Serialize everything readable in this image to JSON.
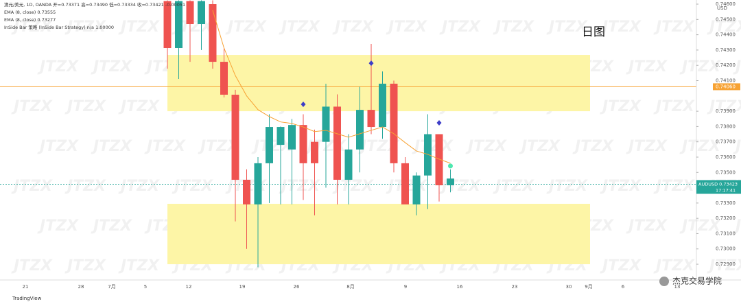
{
  "chart_data": {
    "type": "candlestick",
    "symbol_line": "澳元/美元, 1D, OANDA  开=0.73371 高=0.73490 低=0.73334 收=0.73421 -0.00051",
    "indicator_lines": [
      "EMA (8, close) 0.73555",
      "EMA (8, close) 0.73277",
      "InSide Bar 策略 (InSide Bar Strategy) n/a 1.00000"
    ],
    "annotation": "日图",
    "currency": "USD",
    "watermark": "JTZX",
    "brand": "TradingView",
    "footer": "杰克交易学院",
    "x_labels": [
      "21",
      "28",
      "7月",
      "5",
      "12",
      "19",
      "26",
      "8月",
      "9",
      "16",
      "23",
      "30",
      "9月",
      "6",
      "13"
    ],
    "ylim": [
      0.72797,
      0.74627
    ],
    "yticks": [
      {
        "value": 0.746,
        "label": "0.74600"
      },
      {
        "value": 0.745,
        "label": "0.74500"
      },
      {
        "value": 0.744,
        "label": "0.74400"
      },
      {
        "value": 0.743,
        "label": "0.74300"
      },
      {
        "value": 0.742,
        "label": "0.74200"
      },
      {
        "value": 0.741,
        "label": "0.74100"
      },
      {
        "value": 0.739,
        "label": "0.73900"
      },
      {
        "value": 0.738,
        "label": "0.73800"
      },
      {
        "value": 0.737,
        "label": "0.73700"
      },
      {
        "value": 0.736,
        "label": "0.73600"
      },
      {
        "value": 0.735,
        "label": "0.73500"
      },
      {
        "value": 0.733,
        "label": "0.73300"
      },
      {
        "value": 0.732,
        "label": "0.73200"
      },
      {
        "value": 0.731,
        "label": "0.73100"
      },
      {
        "value": 0.73,
        "label": "0.73000"
      },
      {
        "value": 0.729,
        "label": "0.72900"
      }
    ],
    "up_color": "#26a69a",
    "down_color": "#ef5350",
    "open": [
      0.7462,
      0.74313,
      0.7462,
      0.7447,
      0.746,
      0.74223,
      0.74008,
      0.73452,
      0.73291,
      0.7356,
      0.7368,
      0.7365,
      0.7381,
      0.737,
      0.737,
      0.7393,
      0.73452,
      0.7365,
      0.73909,
      0.73797,
      0.7408,
      0.7356,
      0.73291,
      0.7348,
      0.7375,
      0.73416
    ],
    "high": [
      0.74625,
      0.74625,
      0.74625,
      0.74625,
      0.74625,
      0.74313,
      0.7404,
      0.7352,
      0.736,
      0.7388,
      0.738,
      0.7385,
      0.7388,
      0.7378,
      0.7408,
      0.7401,
      0.7375,
      0.7406,
      0.7434,
      0.7416,
      0.741,
      0.736,
      0.735,
      0.7388,
      0.7375,
      0.7352
    ],
    "low": [
      0.74178,
      0.74111,
      0.74223,
      0.743,
      0.74178,
      0.7399,
      0.7318,
      0.73,
      0.7288,
      0.733,
      0.73291,
      0.73291,
      0.7332,
      0.7322,
      0.734,
      0.73291,
      0.73291,
      0.735,
      0.7375,
      0.7372,
      0.735,
      0.733,
      0.7322,
      0.7326,
      0.7331,
      0.7337
    ],
    "close": [
      0.74313,
      0.7462,
      0.7447,
      0.7462,
      0.74223,
      0.74008,
      0.73452,
      0.73291,
      0.7356,
      0.73797,
      0.73797,
      0.7381,
      0.7356,
      0.7356,
      0.7393,
      0.73452,
      0.7365,
      0.73909,
      0.73797,
      0.7408,
      0.7356,
      0.73291,
      0.7348,
      0.7375,
      0.73416,
      0.7346
    ],
    "ema": {
      "color": "#f7a233",
      "values": [
        null,
        null,
        null,
        null,
        0.7456,
        0.74313,
        0.74133,
        0.74,
        0.7391,
        0.73865,
        0.7383,
        0.7382,
        0.73797,
        0.73767,
        0.73775,
        0.73753,
        0.7373,
        0.73753,
        0.73775,
        0.73797,
        0.73753,
        0.73695,
        0.7364,
        0.73618,
        0.73587,
        0.7356
      ]
    },
    "zones": [
      {
        "from": 0.739,
        "to": 0.74268,
        "color": "#fdf5a6"
      },
      {
        "from": 0.729,
        "to": 0.73295,
        "color": "#fdf5a6"
      }
    ],
    "level": {
      "value": 0.7406,
      "label": "0.74060",
      "color": "#f7a233"
    },
    "last_price": {
      "value": 0.73423,
      "label": "AUDUSD 0.73423",
      "time": "17:17:41",
      "color": "#26a69a"
    },
    "signals": {
      "color": "#3d3dc8",
      "index": [
        12,
        18,
        24
      ],
      "values": [
        0.73945,
        0.74214,
        0.73824
      ]
    },
    "dot": {
      "color": "#4de8b0",
      "index": 25,
      "value": 0.73542
    }
  }
}
